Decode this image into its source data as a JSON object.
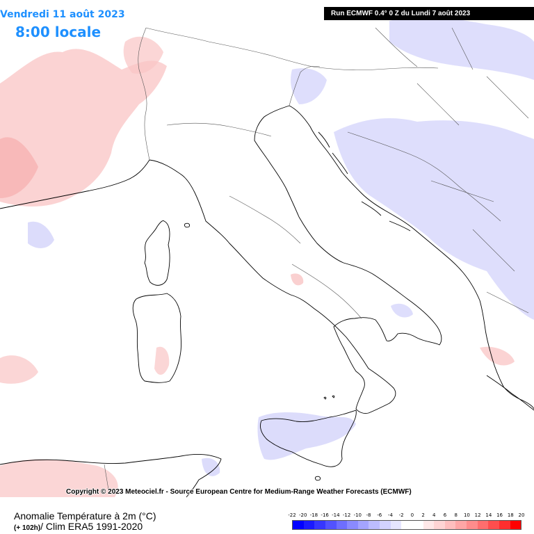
{
  "header": {
    "date": "Vendredi 11 août 2023",
    "local_time": "8:00 locale",
    "run_info": "Run ECMWF 0.4° 0 Z du Lundi 7 août 2023"
  },
  "copyright": "Copyright © 2023 Meteociel.fr - Source European Centre for Medium-Range Weather Forecasts (ECMWF)",
  "footer": {
    "title": "Anomalie Température à 2m (°C)",
    "lead_time": "(+ 102h)",
    "climatology": "/ Clim ERA5 1991-2020"
  },
  "map": {
    "colors": {
      "sea": "#ffffff",
      "land": "#ffffff",
      "border": "#000000",
      "warm_anomaly": "#f7b7b7",
      "cold_anomaly": "#d7d7fb"
    }
  },
  "legend": {
    "unit": "°C",
    "labels": [
      "-22",
      "-20",
      "-18",
      "-16",
      "-14",
      "-12",
      "-10",
      "-8",
      "-6",
      "-4",
      "-2",
      "0",
      "2",
      "4",
      "6",
      "8",
      "10",
      "12",
      "14",
      "16",
      "18",
      "20"
    ],
    "colors": [
      "#0000ff",
      "#1a1aff",
      "#3636ff",
      "#5252ff",
      "#6e6eff",
      "#8a8aff",
      "#a4a4ff",
      "#bcbcff",
      "#d2d2ff",
      "#e6e6ff",
      "#ffffff",
      "#ffffff",
      "#ffe8e8",
      "#ffd4d4",
      "#ffbebe",
      "#ffa6a6",
      "#ff8c8c",
      "#ff6e6e",
      "#ff4e4e",
      "#ff2e2e",
      "#ff0000"
    ]
  }
}
